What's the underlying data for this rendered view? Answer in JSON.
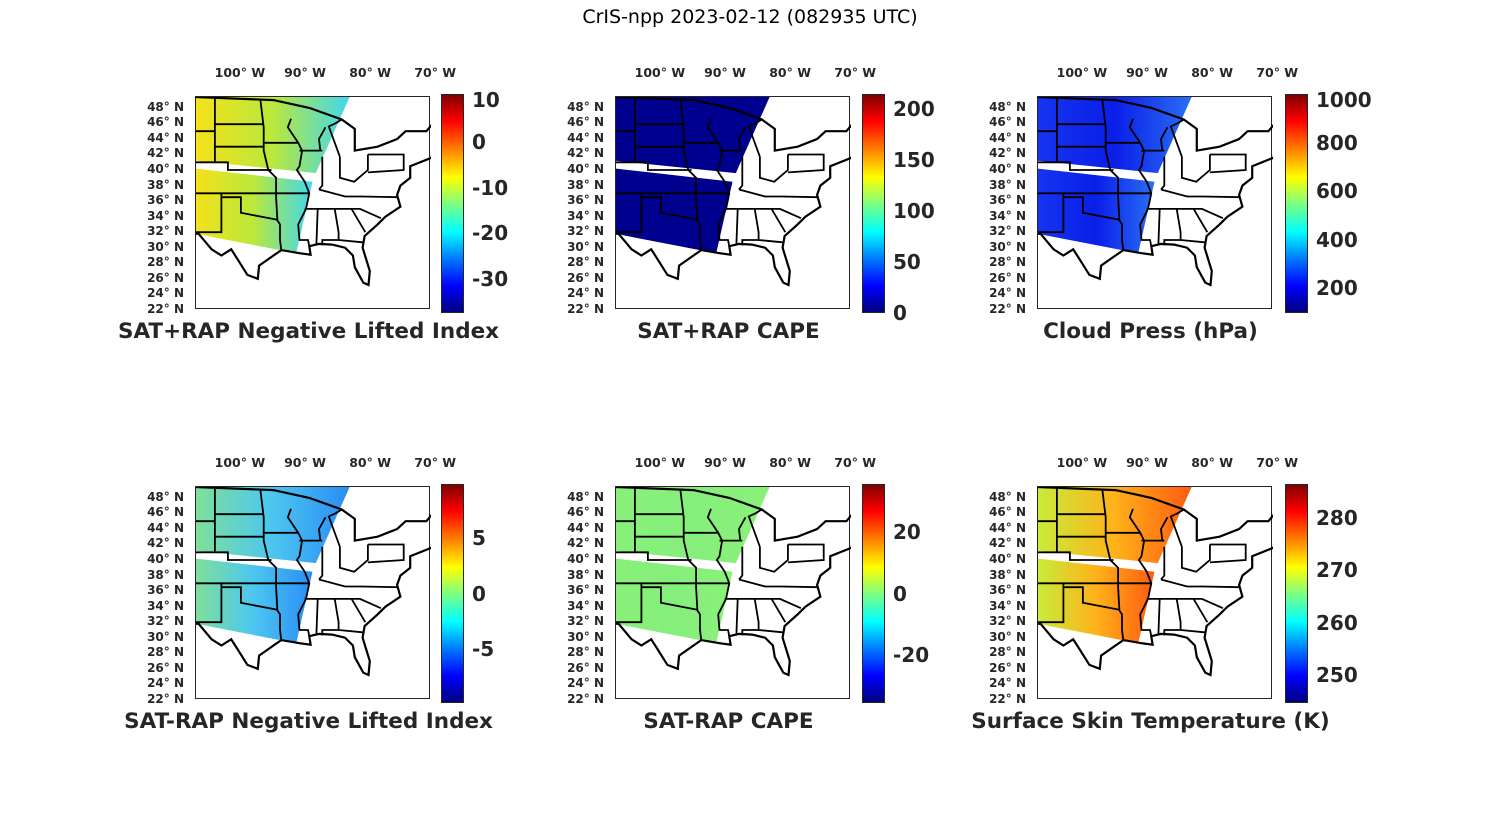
{
  "title": "CrIS-npp 2023-02-12 (082935 UTC)",
  "lon_labels": [
    "100° W",
    "90° W",
    "80° W",
    "70° W"
  ],
  "lat_labels": [
    "48° N",
    "46° N",
    "44° N",
    "42° N",
    "40° N",
    "38° N",
    "36° N",
    "34° N",
    "32° N",
    "30° N",
    "28° N",
    "26° N",
    "24° N",
    "22° N"
  ],
  "colormap": "jet",
  "panels": [
    {
      "title": "SAT+RAP Negative Lifted Index",
      "cbar_range": [
        -37.5,
        10.5
      ],
      "cbar_ticks": [
        "10",
        "0",
        "-10",
        "-20",
        "-30"
      ],
      "swath_colors": [
        "#f5e11a",
        "#b9e83c",
        "#3fd7f0"
      ]
    },
    {
      "title": "SAT+RAP CAPE",
      "cbar_range": [
        0,
        215
      ],
      "cbar_ticks": [
        "200",
        "150",
        "100",
        "50",
        "0"
      ],
      "swath_colors": [
        "#00008f",
        "#00008f",
        "#00008f"
      ]
    },
    {
      "title": "Cloud Press (hPa)",
      "cbar_range": [
        97,
        1000
      ],
      "cbar_ticks": [
        "1000",
        "800",
        "600",
        "400",
        "200"
      ],
      "swath_colors": [
        "#1535f0",
        "#0a1ee8",
        "#2a6ff5"
      ]
    },
    {
      "title": "SAT-RAP Negative Lifted Index",
      "cbar_range": [
        -9.8,
        9.8
      ],
      "cbar_ticks": [
        "5",
        "0",
        "-5"
      ],
      "swath_colors": [
        "#7fe09a",
        "#4cc6f0",
        "#2a8cf5"
      ]
    },
    {
      "title": "SAT-RAP CAPE",
      "cbar_range": [
        -35.5,
        35.5
      ],
      "cbar_ticks": [
        "20",
        "0",
        "-20"
      ],
      "swath_colors": [
        "#88f07a",
        "#86ef7c",
        "#8af078"
      ]
    },
    {
      "title": "Surface Skin Temperature (K)",
      "cbar_range": [
        244.6,
        286.5
      ],
      "cbar_ticks": [
        "280",
        "270",
        "260",
        "250"
      ],
      "swath_colors": [
        "#c8ec3a",
        "#ffb21a",
        "#ff5a10"
      ]
    }
  ]
}
